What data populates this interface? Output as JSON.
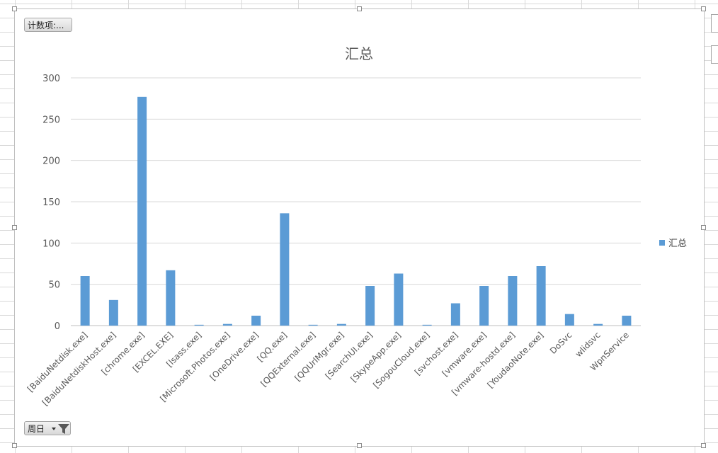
{
  "window": {
    "count_field_button": "计数项:...",
    "filter_field_button": "周日"
  },
  "chart_data": {
    "type": "bar",
    "title": "汇总",
    "categories": [
      "[BaiduNetdisk.exe]",
      "[BaiduNetdiskHost.exe]",
      "[chrome.exe]",
      "[EXCEL.EXE]",
      "[lsass.exe]",
      "[Microsoft.Photos.exe]",
      "[OneDrive.exe]",
      "[QQ.exe]",
      "[QQExternal.exe]",
      "[QQUrlMgr.exe]",
      "[SearchUI.exe]",
      "[SkypeApp.exe]",
      "[SogouCloud.exe]",
      "[svchost.exe]",
      "[vmware.exe]",
      "[vmware-hostd.exe]",
      "[YoudaoNote.exe]",
      "DoSvc",
      "wlidsvc",
      "WpnService"
    ],
    "series": [
      {
        "name": "汇总",
        "values": [
          60,
          31,
          277,
          67,
          1,
          2,
          12,
          136,
          1,
          2,
          48,
          63,
          1,
          27,
          48,
          60,
          72,
          14,
          2,
          12
        ]
      }
    ],
    "ylim": [
      0,
      300
    ],
    "yticks": [
      0,
      50,
      100,
      150,
      200,
      250,
      300
    ],
    "grid": true,
    "legend": "right",
    "color": "#5b9bd5"
  }
}
